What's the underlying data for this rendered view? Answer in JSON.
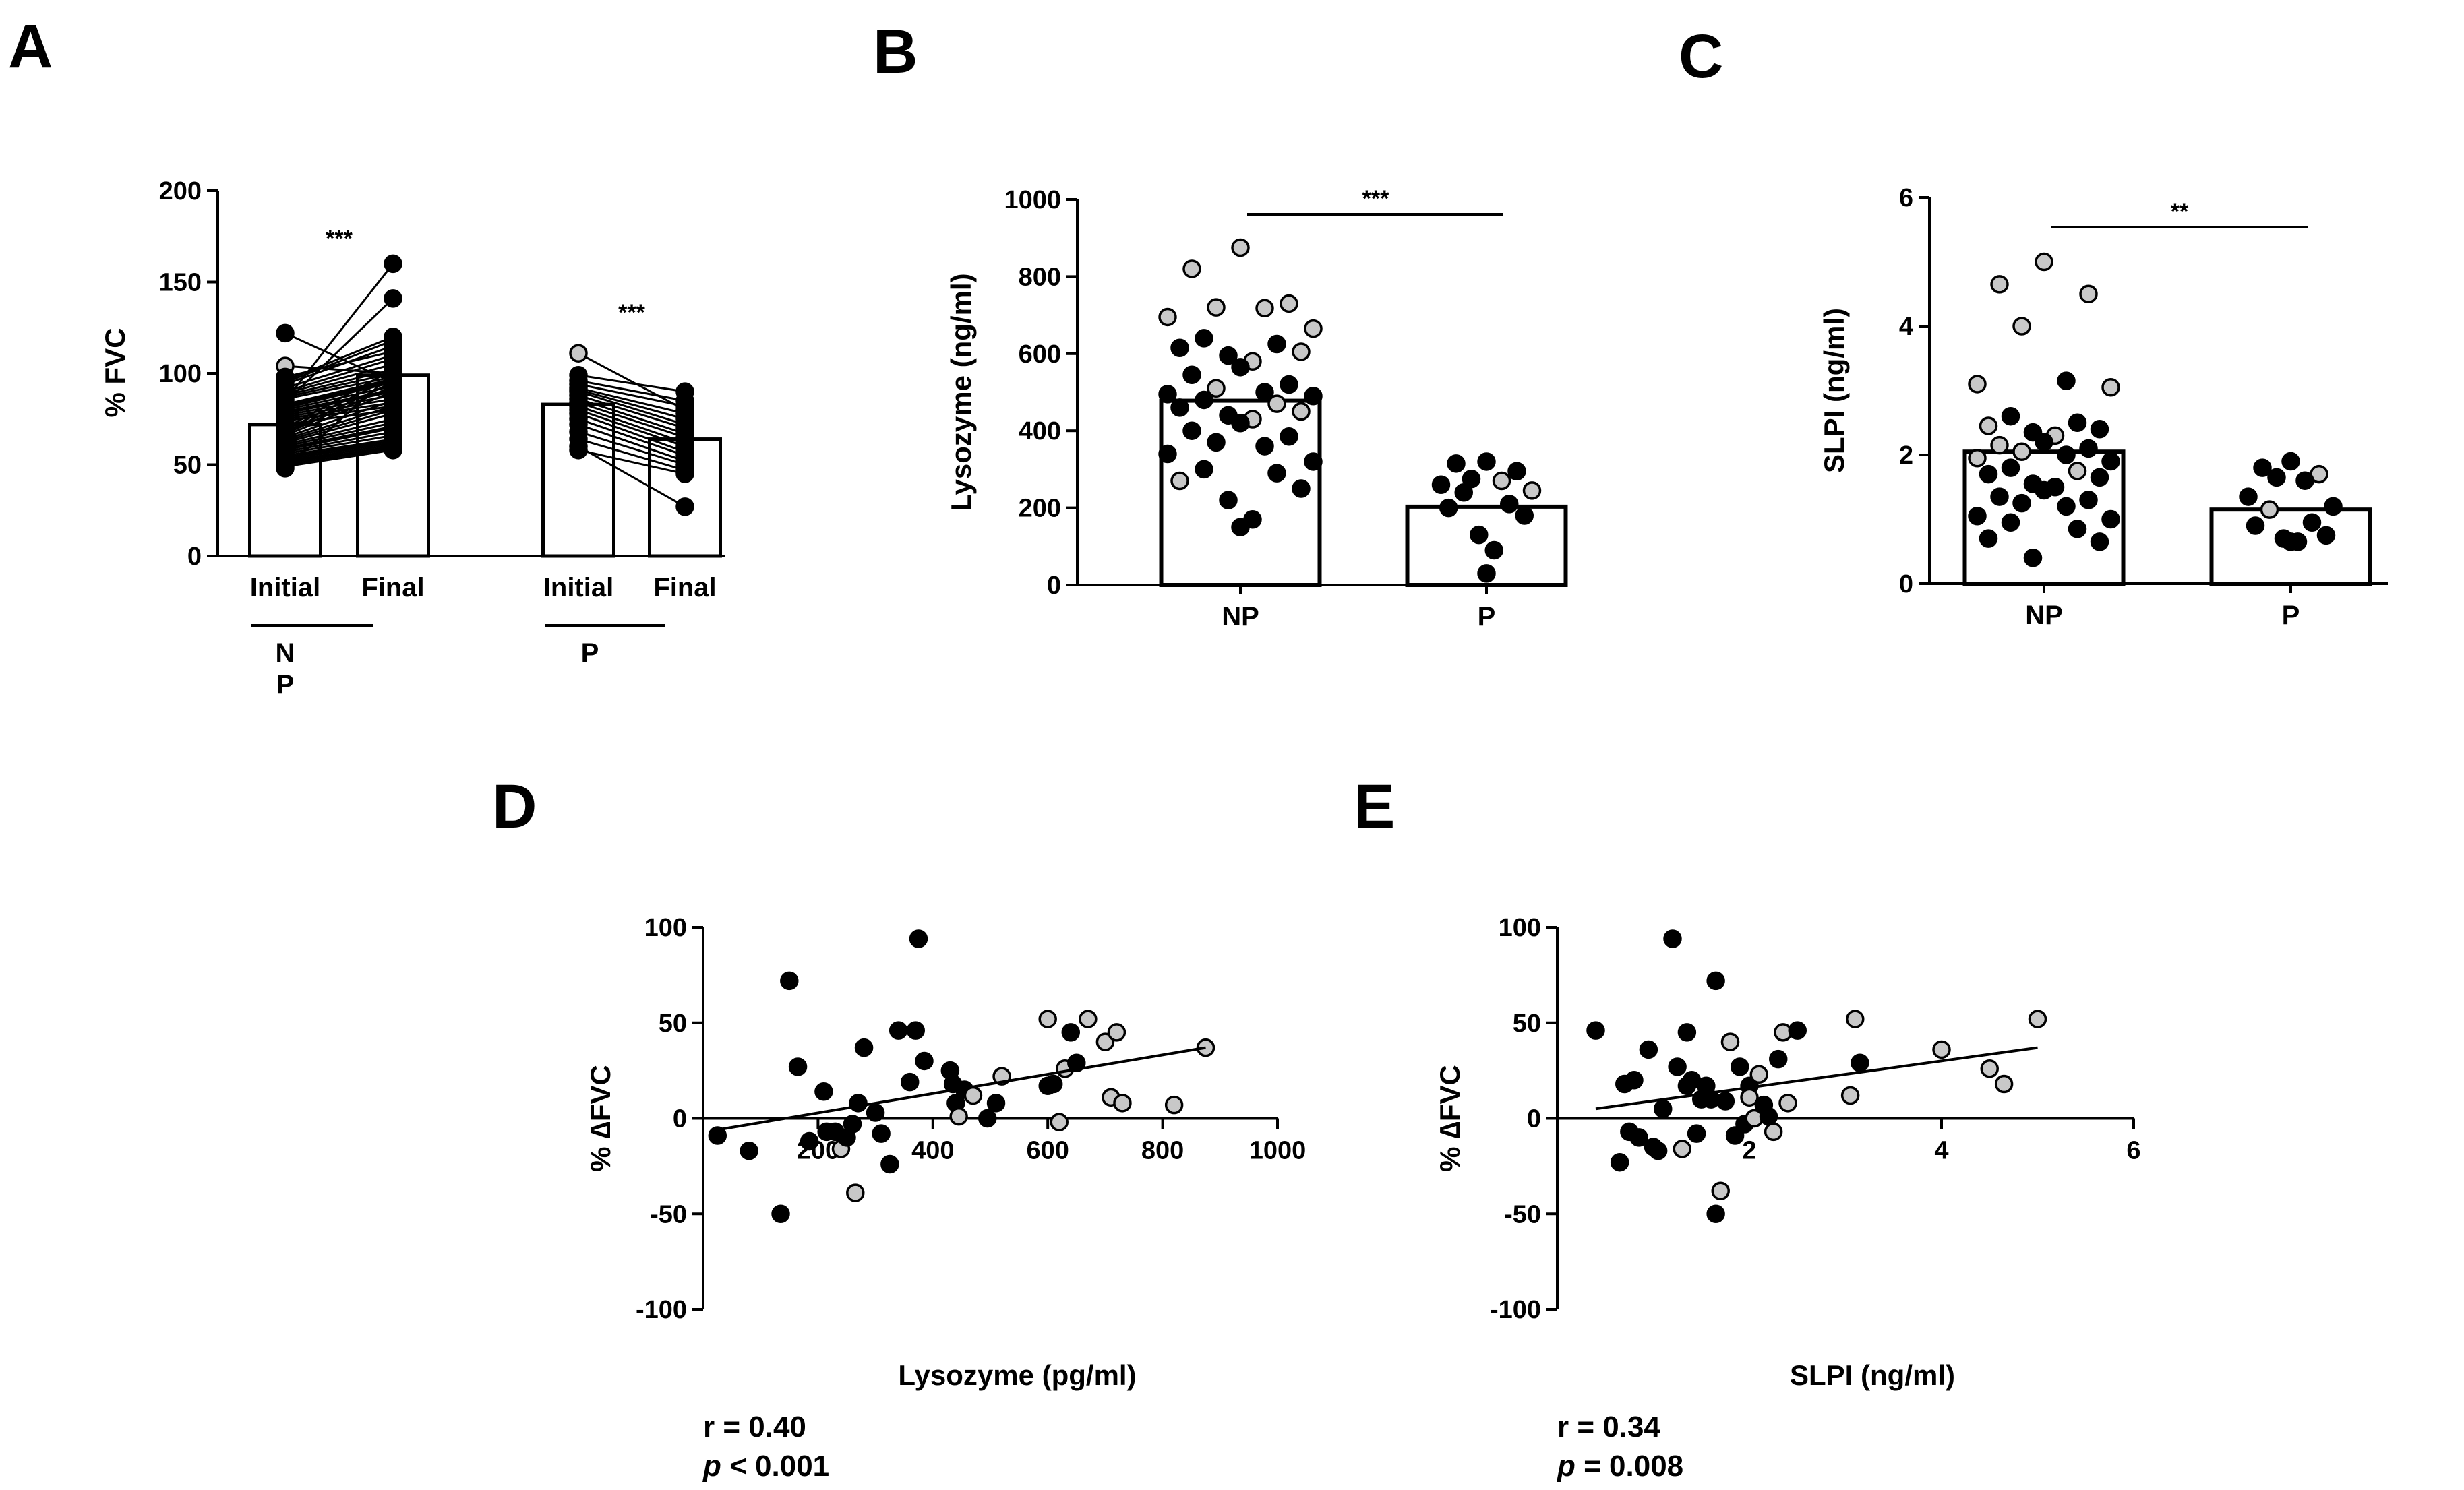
{
  "figure": {
    "panels": [
      "A",
      "B",
      "C",
      "D",
      "E"
    ],
    "colors": {
      "black": "#000000",
      "grey": "#c8c8c8",
      "white": "#ffffff"
    }
  },
  "chart_data": [
    {
      "id": "A",
      "type": "bar",
      "ylabel": "% FVC",
      "ylim": [
        0,
        200
      ],
      "yticks": [
        0,
        50,
        100,
        150,
        200
      ],
      "categories": [
        "Initial",
        "Final",
        "Initial",
        "Final"
      ],
      "groups": [
        {
          "label_lines": [
            "N",
            "P"
          ],
          "initial_mean": 72,
          "final_mean": 99,
          "significance": "***",
          "pairs": [
            [
              122,
              95
            ],
            [
              104,
              100
            ],
            [
              98,
              112
            ],
            [
              96,
              120
            ],
            [
              95,
              118
            ],
            [
              94,
              115
            ],
            [
              92,
              110
            ],
            [
              90,
              108
            ],
            [
              89,
              105
            ],
            [
              88,
              102
            ],
            [
              87,
              100
            ],
            [
              86,
              98
            ],
            [
              85,
              160
            ],
            [
              84,
              141
            ],
            [
              83,
              97
            ],
            [
              82,
              96
            ],
            [
              81,
              95
            ],
            [
              80,
              93
            ],
            [
              79,
              91
            ],
            [
              78,
              90
            ],
            [
              77,
              88
            ],
            [
              76,
              86
            ],
            [
              75,
              84
            ],
            [
              74,
              82
            ],
            [
              72,
              80
            ],
            [
              70,
              102
            ],
            [
              69,
              98
            ],
            [
              68,
              95
            ],
            [
              67,
              93
            ],
            [
              66,
              90
            ],
            [
              65,
              85
            ],
            [
              64,
              82
            ],
            [
              63,
              80
            ],
            [
              62,
              78
            ],
            [
              61,
              75
            ],
            [
              60,
              73
            ],
            [
              59,
              71
            ],
            [
              58,
              70
            ],
            [
              57,
              68
            ],
            [
              56,
              66
            ],
            [
              55,
              64
            ],
            [
              54,
              63
            ],
            [
              53,
              62
            ],
            [
              52,
              61
            ],
            [
              51,
              60
            ],
            [
              50,
              59
            ],
            [
              49,
              58
            ],
            [
              48,
              100
            ]
          ],
          "grey_initial_index": 1
        },
        {
          "label_lines": [
            "P"
          ],
          "initial_mean": 83,
          "final_mean": 64,
          "significance": "***",
          "pairs": [
            [
              111,
              80
            ],
            [
              99,
              90
            ],
            [
              96,
              85
            ],
            [
              94,
              82
            ],
            [
              92,
              78
            ],
            [
              91,
              75
            ],
            [
              90,
              72
            ],
            [
              88,
              70
            ],
            [
              86,
              67
            ],
            [
              84,
              65
            ],
            [
              82,
              62
            ],
            [
              80,
              60
            ],
            [
              78,
              57
            ],
            [
              75,
              55
            ],
            [
              72,
              52
            ],
            [
              68,
              50
            ],
            [
              64,
              47
            ],
            [
              60,
              27
            ],
            [
              58,
              45
            ]
          ],
          "grey_initial_index": 0
        }
      ]
    },
    {
      "id": "B",
      "type": "bar",
      "ylabel": "Lysozyme (ng/ml)",
      "ylim": [
        0,
        1000
      ],
      "yticks": [
        0,
        200,
        400,
        600,
        800,
        1000
      ],
      "categories": [
        "NP",
        "P"
      ],
      "means": [
        478,
        203
      ],
      "significance": "***",
      "points": [
        [
          [
            875,
            "g"
          ],
          [
            820,
            "g"
          ],
          [
            730,
            "g"
          ],
          [
            720,
            "g"
          ],
          [
            718,
            "g"
          ],
          [
            695,
            "g"
          ],
          [
            665,
            "g"
          ],
          [
            640,
            "b"
          ],
          [
            625,
            "b"
          ],
          [
            615,
            "b"
          ],
          [
            605,
            "g"
          ],
          [
            595,
            "b"
          ],
          [
            580,
            "g"
          ],
          [
            565,
            "b"
          ],
          [
            545,
            "b"
          ],
          [
            520,
            "b"
          ],
          [
            510,
            "g"
          ],
          [
            500,
            "b"
          ],
          [
            495,
            "b"
          ],
          [
            490,
            "b"
          ],
          [
            480,
            "b"
          ],
          [
            470,
            "g"
          ],
          [
            460,
            "b"
          ],
          [
            450,
            "g"
          ],
          [
            440,
            "b"
          ],
          [
            430,
            "g"
          ],
          [
            420,
            "b"
          ],
          [
            400,
            "b"
          ],
          [
            385,
            "b"
          ],
          [
            370,
            "b"
          ],
          [
            360,
            "b"
          ],
          [
            340,
            "b"
          ],
          [
            320,
            "b"
          ],
          [
            300,
            "b"
          ],
          [
            290,
            "b"
          ],
          [
            270,
            "g"
          ],
          [
            250,
            "b"
          ],
          [
            220,
            "b"
          ],
          [
            170,
            "b"
          ],
          [
            150,
            "b"
          ]
        ],
        [
          [
            320,
            "b"
          ],
          [
            315,
            "b"
          ],
          [
            295,
            "b"
          ],
          [
            275,
            "b"
          ],
          [
            270,
            "g"
          ],
          [
            260,
            "b"
          ],
          [
            245,
            "g"
          ],
          [
            240,
            "b"
          ],
          [
            210,
            "b"
          ],
          [
            200,
            "b"
          ],
          [
            180,
            "b"
          ],
          [
            130,
            "b"
          ],
          [
            90,
            "b"
          ],
          [
            30,
            "b"
          ]
        ]
      ]
    },
    {
      "id": "C",
      "type": "bar",
      "ylabel": "SLPI (ng/ml)",
      "ylim": [
        0,
        6
      ],
      "yticks": [
        0,
        2,
        4,
        6
      ],
      "categories": [
        "NP",
        "P"
      ],
      "means": [
        2.05,
        1.15
      ],
      "significance": "**",
      "points": [
        [
          [
            5.0,
            "g"
          ],
          [
            4.65,
            "g"
          ],
          [
            4.5,
            "g"
          ],
          [
            4.0,
            "g"
          ],
          [
            3.15,
            "b"
          ],
          [
            3.1,
            "g"
          ],
          [
            3.05,
            "g"
          ],
          [
            2.6,
            "b"
          ],
          [
            2.5,
            "b"
          ],
          [
            2.45,
            "g"
          ],
          [
            2.4,
            "b"
          ],
          [
            2.35,
            "b"
          ],
          [
            2.3,
            "g"
          ],
          [
            2.2,
            "b"
          ],
          [
            2.15,
            "g"
          ],
          [
            2.1,
            "b"
          ],
          [
            2.05,
            "g"
          ],
          [
            2.0,
            "b"
          ],
          [
            1.95,
            "g"
          ],
          [
            1.9,
            "b"
          ],
          [
            1.8,
            "b"
          ],
          [
            1.75,
            "g"
          ],
          [
            1.7,
            "b"
          ],
          [
            1.65,
            "b"
          ],
          [
            1.55,
            "b"
          ],
          [
            1.5,
            "b"
          ],
          [
            1.45,
            "b"
          ],
          [
            1.35,
            "b"
          ],
          [
            1.3,
            "b"
          ],
          [
            1.25,
            "b"
          ],
          [
            1.2,
            "b"
          ],
          [
            1.05,
            "b"
          ],
          [
            1.0,
            "b"
          ],
          [
            0.95,
            "b"
          ],
          [
            0.85,
            "b"
          ],
          [
            0.7,
            "b"
          ],
          [
            0.65,
            "b"
          ],
          [
            0.4,
            "b"
          ]
        ],
        [
          [
            1.9,
            "b"
          ],
          [
            1.8,
            "b"
          ],
          [
            1.7,
            "g"
          ],
          [
            1.65,
            "b"
          ],
          [
            1.6,
            "b"
          ],
          [
            1.35,
            "b"
          ],
          [
            1.2,
            "b"
          ],
          [
            1.15,
            "g"
          ],
          [
            0.95,
            "b"
          ],
          [
            0.9,
            "b"
          ],
          [
            0.75,
            "b"
          ],
          [
            0.7,
            "b"
          ],
          [
            0.65,
            "b"
          ],
          [
            0.65,
            "b"
          ]
        ]
      ]
    },
    {
      "id": "D",
      "type": "scatter",
      "xlabel": "Lysozyme (pg/ml)",
      "ylabel": "% ∆FVC",
      "xlim": [
        0,
        1000
      ],
      "ylim": [
        -100,
        100
      ],
      "xticks": [
        200,
        400,
        600,
        800,
        1000
      ],
      "yticks": [
        -100,
        -50,
        0,
        50,
        100
      ],
      "r_text": "r = 0.40",
      "p_symbol": "p",
      "p_text": " < 0.001",
      "fit": {
        "x": [
          25,
          875
        ],
        "y": [
          -6,
          37
        ]
      },
      "points": [
        [
          25,
          -9,
          "b"
        ],
        [
          80,
          -17,
          "b"
        ],
        [
          135,
          -50,
          "b"
        ],
        [
          150,
          72,
          "b"
        ],
        [
          165,
          27,
          "b"
        ],
        [
          185,
          -12,
          "b"
        ],
        [
          210,
          14,
          "b"
        ],
        [
          215,
          -7,
          "b"
        ],
        [
          230,
          -7,
          "b"
        ],
        [
          240,
          -16,
          "g"
        ],
        [
          250,
          -10,
          "b"
        ],
        [
          260,
          -3,
          "b"
        ],
        [
          265,
          -39,
          "g"
        ],
        [
          270,
          8,
          "b"
        ],
        [
          280,
          37,
          "b"
        ],
        [
          300,
          3,
          "b"
        ],
        [
          310,
          -8,
          "b"
        ],
        [
          325,
          -24,
          "b"
        ],
        [
          340,
          46,
          "b"
        ],
        [
          360,
          19,
          "b"
        ],
        [
          370,
          46,
          "b"
        ],
        [
          375,
          94,
          "b"
        ],
        [
          385,
          30,
          "b"
        ],
        [
          430,
          25,
          "b"
        ],
        [
          435,
          18,
          "b"
        ],
        [
          440,
          8,
          "b"
        ],
        [
          445,
          1,
          "g"
        ],
        [
          455,
          15,
          "b"
        ],
        [
          470,
          12,
          "g"
        ],
        [
          495,
          0,
          "b"
        ],
        [
          510,
          8,
          "b"
        ],
        [
          520,
          22,
          "g"
        ],
        [
          600,
          52,
          "g"
        ],
        [
          600,
          17,
          "b"
        ],
        [
          610,
          18,
          "b"
        ],
        [
          620,
          -2,
          "g"
        ],
        [
          630,
          26,
          "g"
        ],
        [
          640,
          45,
          "b"
        ],
        [
          650,
          29,
          "b"
        ],
        [
          670,
          52,
          "g"
        ],
        [
          700,
          40,
          "g"
        ],
        [
          710,
          11,
          "g"
        ],
        [
          720,
          45,
          "g"
        ],
        [
          730,
          8,
          "g"
        ],
        [
          820,
          7,
          "g"
        ],
        [
          875,
          37,
          "g"
        ]
      ]
    },
    {
      "id": "E",
      "type": "scatter",
      "xlabel": "SLPI (ng/ml)",
      "ylabel": "% ∆FVC",
      "xlim": [
        0,
        6
      ],
      "ylim": [
        -100,
        100
      ],
      "xticks": [
        2,
        4,
        6
      ],
      "yticks": [
        -100,
        -50,
        0,
        50,
        100
      ],
      "r_text": "r = 0.34",
      "p_symbol": "p",
      "p_text": " = 0.008",
      "fit": {
        "x": [
          0.4,
          5.0
        ],
        "y": [
          5,
          37
        ]
      },
      "points": [
        [
          0.4,
          46,
          "b"
        ],
        [
          0.65,
          -23,
          "b"
        ],
        [
          0.7,
          18,
          "b"
        ],
        [
          0.75,
          -7,
          "b"
        ],
        [
          0.8,
          20,
          "b"
        ],
        [
          0.85,
          -10,
          "b"
        ],
        [
          0.95,
          36,
          "b"
        ],
        [
          1.0,
          -15,
          "b"
        ],
        [
          1.05,
          -17,
          "b"
        ],
        [
          1.1,
          5,
          "b"
        ],
        [
          1.2,
          94,
          "b"
        ],
        [
          1.25,
          27,
          "b"
        ],
        [
          1.3,
          -16,
          "g"
        ],
        [
          1.35,
          45,
          "b"
        ],
        [
          1.35,
          17,
          "b"
        ],
        [
          1.4,
          20,
          "b"
        ],
        [
          1.45,
          -8,
          "b"
        ],
        [
          1.5,
          10,
          "b"
        ],
        [
          1.55,
          17,
          "b"
        ],
        [
          1.6,
          10,
          "b"
        ],
        [
          1.65,
          72,
          "b"
        ],
        [
          1.65,
          -50,
          "b"
        ],
        [
          1.7,
          -38,
          "g"
        ],
        [
          1.75,
          9,
          "b"
        ],
        [
          1.8,
          40,
          "g"
        ],
        [
          1.85,
          -9,
          "b"
        ],
        [
          1.9,
          27,
          "b"
        ],
        [
          1.95,
          -3,
          "b"
        ],
        [
          2.0,
          17,
          "b"
        ],
        [
          2.0,
          11,
          "g"
        ],
        [
          2.05,
          0,
          "g"
        ],
        [
          2.1,
          23,
          "g"
        ],
        [
          2.15,
          7,
          "b"
        ],
        [
          2.2,
          1,
          "b"
        ],
        [
          2.25,
          -7,
          "g"
        ],
        [
          2.35,
          45,
          "g"
        ],
        [
          2.4,
          8,
          "g"
        ],
        [
          2.5,
          46,
          "b"
        ],
        [
          3.1,
          52,
          "g"
        ],
        [
          3.05,
          12,
          "g"
        ],
        [
          3.15,
          29,
          "b"
        ],
        [
          4.0,
          36,
          "g"
        ],
        [
          4.5,
          26,
          "g"
        ],
        [
          4.65,
          18,
          "g"
        ],
        [
          5.0,
          52,
          "g"
        ],
        [
          2.3,
          31,
          "b"
        ]
      ]
    }
  ]
}
